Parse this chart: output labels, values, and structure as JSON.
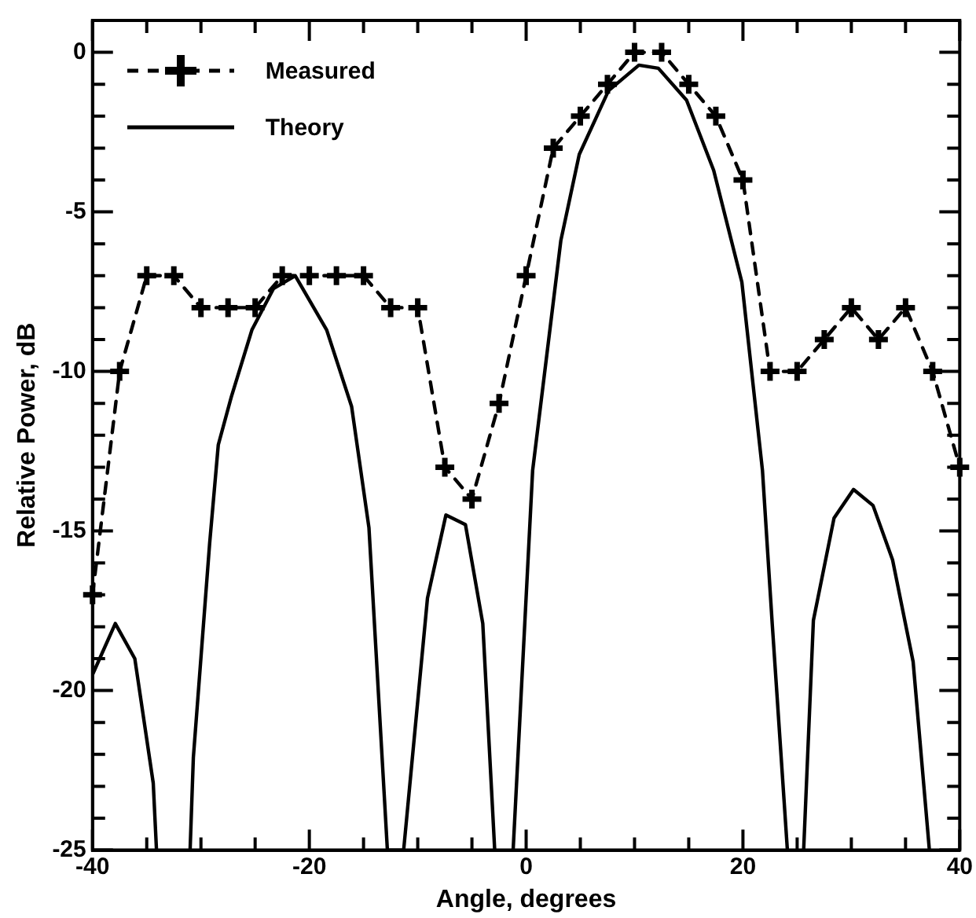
{
  "chart_data": {
    "type": "line",
    "xlabel": "Angle, degrees",
    "ylabel": "Relative Power, dB",
    "xlim": [
      -40,
      40
    ],
    "ylim": [
      -25,
      1
    ],
    "xticks": [
      -40,
      {
        "value": -35,
        "label": null
      },
      {
        "value": -30,
        "label": null
      },
      {
        "value": -25,
        "label": null
      },
      -20,
      {
        "value": -15,
        "label": null
      },
      {
        "value": -10,
        "label": null
      },
      {
        "value": -5,
        "label": null
      },
      0,
      {
        "value": 5,
        "label": null
      },
      {
        "value": 10,
        "label": null
      },
      {
        "value": 15,
        "label": null
      },
      20,
      {
        "value": 25,
        "label": null
      },
      {
        "value": 30,
        "label": null
      },
      {
        "value": 35,
        "label": null
      },
      40
    ],
    "yticks": [
      -25,
      {
        "value": -24,
        "label": null
      },
      {
        "value": -23,
        "label": null
      },
      {
        "value": -22,
        "label": null
      },
      {
        "value": -21,
        "label": null
      },
      -20,
      {
        "value": -19,
        "label": null
      },
      {
        "value": -18,
        "label": null
      },
      {
        "value": -17,
        "label": null
      },
      {
        "value": -16,
        "label": null
      },
      -15,
      {
        "value": -14,
        "label": null
      },
      {
        "value": -13,
        "label": null
      },
      {
        "value": -12,
        "label": null
      },
      {
        "value": -11,
        "label": null
      },
      -10,
      {
        "value": -9,
        "label": null
      },
      {
        "value": -8,
        "label": null
      },
      {
        "value": -7,
        "label": null
      },
      {
        "value": -6,
        "label": null
      },
      -5,
      {
        "value": -4,
        "label": null
      },
      {
        "value": -3,
        "label": null
      },
      {
        "value": -2,
        "label": null
      },
      {
        "value": -1,
        "label": null
      },
      0
    ],
    "grid": false,
    "legend": "top left",
    "series": [
      {
        "name": "Measured",
        "color": "#000000",
        "marker": "cross",
        "line_style": "dashed",
        "x": [
          -40,
          -37.5,
          -35,
          -32.5,
          -30,
          -27.5,
          -25,
          -22.5,
          -20,
          -17.5,
          -15,
          -12.5,
          -10,
          -7.5,
          -5,
          -2.5,
          0,
          2.5,
          5,
          7.5,
          10,
          12.5,
          15,
          17.5,
          20,
          22.5,
          25,
          27.5,
          30,
          32.5,
          35,
          37.5,
          40
        ],
        "values": [
          -17,
          -10,
          -7,
          -7,
          -8,
          -8,
          -8,
          -7,
          -7,
          -7,
          -7,
          -8,
          -8,
          -13,
          -14,
          -11,
          -7,
          -3,
          -2,
          -1,
          0,
          0,
          -1,
          -2,
          -4,
          -10,
          -10,
          -9,
          -8,
          -9,
          -8,
          -10,
          -13
        ]
      },
      {
        "name": "Theory",
        "color": "#000000",
        "marker": "none",
        "line_style": "solid",
        "x": [
          -40,
          -37.9,
          -36.1,
          -34.4,
          -34.1,
          -32.5,
          -31,
          -30.7,
          -29.2,
          -28.4,
          -27.2,
          -25.3,
          -23.3,
          -21.3,
          -18.4,
          -16.1,
          -14.5,
          -12.8,
          -11.3,
          -9.1,
          -7.4,
          -5.6,
          -4,
          -2.9,
          -2,
          -1.2,
          0.6,
          3.2,
          4.9,
          7.6,
          10.4,
          12.2,
          14.8,
          17.3,
          19.9,
          21.8,
          22.7,
          24.1,
          25,
          25.6,
          26.5,
          28.4,
          30.2,
          32,
          33.8,
          35.7,
          37.2
        ],
        "values": [
          -19.5,
          -17.9,
          -19,
          -22.9,
          -25,
          null,
          -25,
          -22.1,
          -15.4,
          -12.3,
          -10.8,
          -8.7,
          -7.4,
          -7,
          -8.7,
          -11.1,
          -14.9,
          -25,
          -25,
          -17.1,
          -14.5,
          -14.8,
          -17.9,
          -25,
          null,
          -25,
          -13.1,
          -5.9,
          -3.2,
          -1.2,
          -0.4,
          -0.5,
          -1.5,
          -3.7,
          -7.2,
          -13.1,
          -17.9,
          -25,
          null,
          -25,
          -17.8,
          -14.6,
          -13.7,
          -14.2,
          -15.9,
          -19.1,
          -25
        ]
      }
    ]
  }
}
